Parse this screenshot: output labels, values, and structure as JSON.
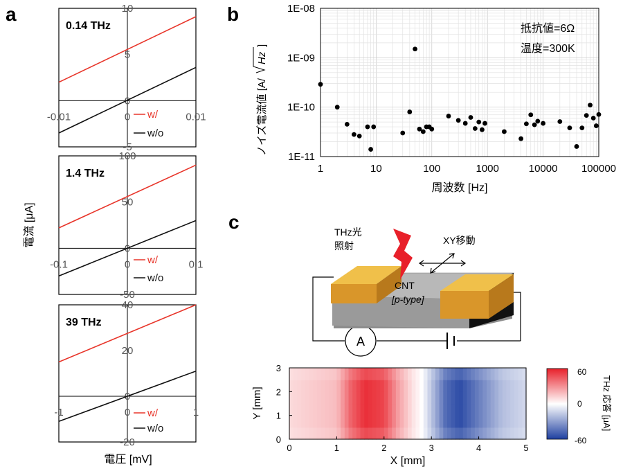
{
  "panels": {
    "a": {
      "letter": "a",
      "xlabel": "電圧 [mV]",
      "ylabel": "電流 [μA]",
      "legend": [
        "w/",
        "w/o"
      ],
      "colors": {
        "with": "#e8352a",
        "without": "#111111"
      }
    },
    "b": {
      "letter": "b",
      "xlabel": "周波数 [Hz]",
      "ylabel_main": "ノイズ電流値 [A/",
      "ylabel_sqrt": "Hz",
      "ylabel_close": "]",
      "annotation1": "抵抗値=6Ω",
      "annotation2": "温度=300K"
    },
    "c": {
      "letter": "c",
      "light_label1": "THz光",
      "light_label2": "照射",
      "move_label": "XY移動",
      "cnt_label1": "CNT",
      "cnt_label2": "[p-type]",
      "ammeter_label": "A",
      "colorbar_title": "THz 応答 [μA]",
      "colorbar_ticks": [
        "60",
        "0",
        "-60"
      ],
      "colors": {
        "positive": "#e8202a",
        "negative": "#1e3fa0",
        "gold": "#e3a92e",
        "substrate": "#a6a6a6"
      }
    }
  },
  "chart_data": [
    {
      "type": "line",
      "title": "0.14 THz",
      "xlim": [
        -0.01,
        0.01
      ],
      "ylim": [
        -5,
        10
      ],
      "xticks": [
        "-0.01",
        "0",
        "0.01"
      ],
      "yticks": [
        "10",
        "5",
        "0",
        "-5"
      ],
      "series": [
        {
          "name": "w/",
          "x": [
            -0.01,
            0.01
          ],
          "y": [
            2,
            9.1
          ]
        },
        {
          "name": "w/o",
          "x": [
            -0.01,
            0.01
          ],
          "y": [
            -3.5,
            3.6
          ]
        }
      ]
    },
    {
      "type": "line",
      "title": "1.4 THz",
      "xlim": [
        -0.1,
        0.1
      ],
      "ylim": [
        -50,
        100
      ],
      "xticks": [
        "-0.1",
        "0",
        "0.1"
      ],
      "yticks": [
        "100",
        "50",
        "0",
        "-50"
      ],
      "series": [
        {
          "name": "w/",
          "x": [
            -0.1,
            0.1
          ],
          "y": [
            22,
            90
          ]
        },
        {
          "name": "w/o",
          "x": [
            -0.1,
            0.1
          ],
          "y": [
            -30,
            30
          ]
        }
      ]
    },
    {
      "type": "line",
      "title": "39 THz",
      "xlim": [
        -1,
        1
      ],
      "ylim": [
        -20,
        40
      ],
      "xticks": [
        "-1",
        "0",
        "1"
      ],
      "yticks": [
        "40",
        "20",
        "0",
        "-20"
      ],
      "series": [
        {
          "name": "w/",
          "x": [
            -1,
            1
          ],
          "y": [
            15,
            40
          ]
        },
        {
          "name": "w/o",
          "x": [
            -1,
            1
          ],
          "y": [
            -11,
            11
          ]
        }
      ]
    },
    {
      "type": "scatter",
      "xscale": "log",
      "yscale": "log",
      "xlim": [
        1,
        100000
      ],
      "ylim": [
        1e-11,
        1e-08
      ],
      "xticks": [
        "1",
        "10",
        "100",
        "1000",
        "10000",
        "100000"
      ],
      "yticks": [
        "1E-08",
        "1E-09",
        "1E-10",
        "1E-11"
      ],
      "grid": true,
      "x": [
        1,
        2,
        3,
        4,
        5,
        7,
        8,
        9,
        30,
        40,
        50,
        60,
        70,
        80,
        90,
        100,
        200,
        300,
        400,
        500,
        600,
        700,
        800,
        900,
        2000,
        4000,
        5000,
        6000,
        7000,
        8000,
        10000,
        20000,
        30000,
        40000,
        50000,
        60000,
        70000,
        80000,
        90000,
        100000
      ],
      "y": [
        2.9e-10,
        1e-10,
        4.5e-11,
        2.8e-11,
        2.6e-11,
        4e-11,
        1.4e-11,
        4e-11,
        3e-11,
        8e-11,
        1.5e-09,
        3.6e-11,
        3.2e-11,
        4e-11,
        4e-11,
        3.6e-11,
        6.6e-11,
        5.4e-11,
        4.7e-11,
        6.2e-11,
        3.7e-11,
        5e-11,
        3.5e-11,
        4.7e-11,
        3.2e-11,
        2.3e-11,
        4.6e-11,
        7e-11,
        4.4e-11,
        5.2e-11,
        4.7e-11,
        5.1e-11,
        3.8e-11,
        1.6e-11,
        3.8e-11,
        6.8e-11,
        1.1e-10,
        6e-11,
        4.2e-11,
        7.1e-11
      ]
    },
    {
      "type": "heatmap",
      "xlabel": "X [mm]",
      "ylabel": "Y [mm]",
      "xlim": [
        0,
        5
      ],
      "ylim": [
        0,
        3
      ],
      "xticks": [
        "0",
        "1",
        "2",
        "3",
        "4",
        "5"
      ],
      "yticks": [
        "3",
        "2",
        "1",
        "0"
      ],
      "colorbar_range": [
        -60,
        60
      ],
      "profile_x": [
        0,
        0.5,
        1,
        1.3,
        1.6,
        2,
        2.3,
        2.6,
        2.8,
        3,
        3.3,
        3.6,
        4,
        4.5,
        5
      ],
      "profile_value": [
        10,
        14,
        18,
        42,
        56,
        50,
        26,
        8,
        0,
        -18,
        -46,
        -56,
        -40,
        -20,
        -12
      ]
    }
  ]
}
